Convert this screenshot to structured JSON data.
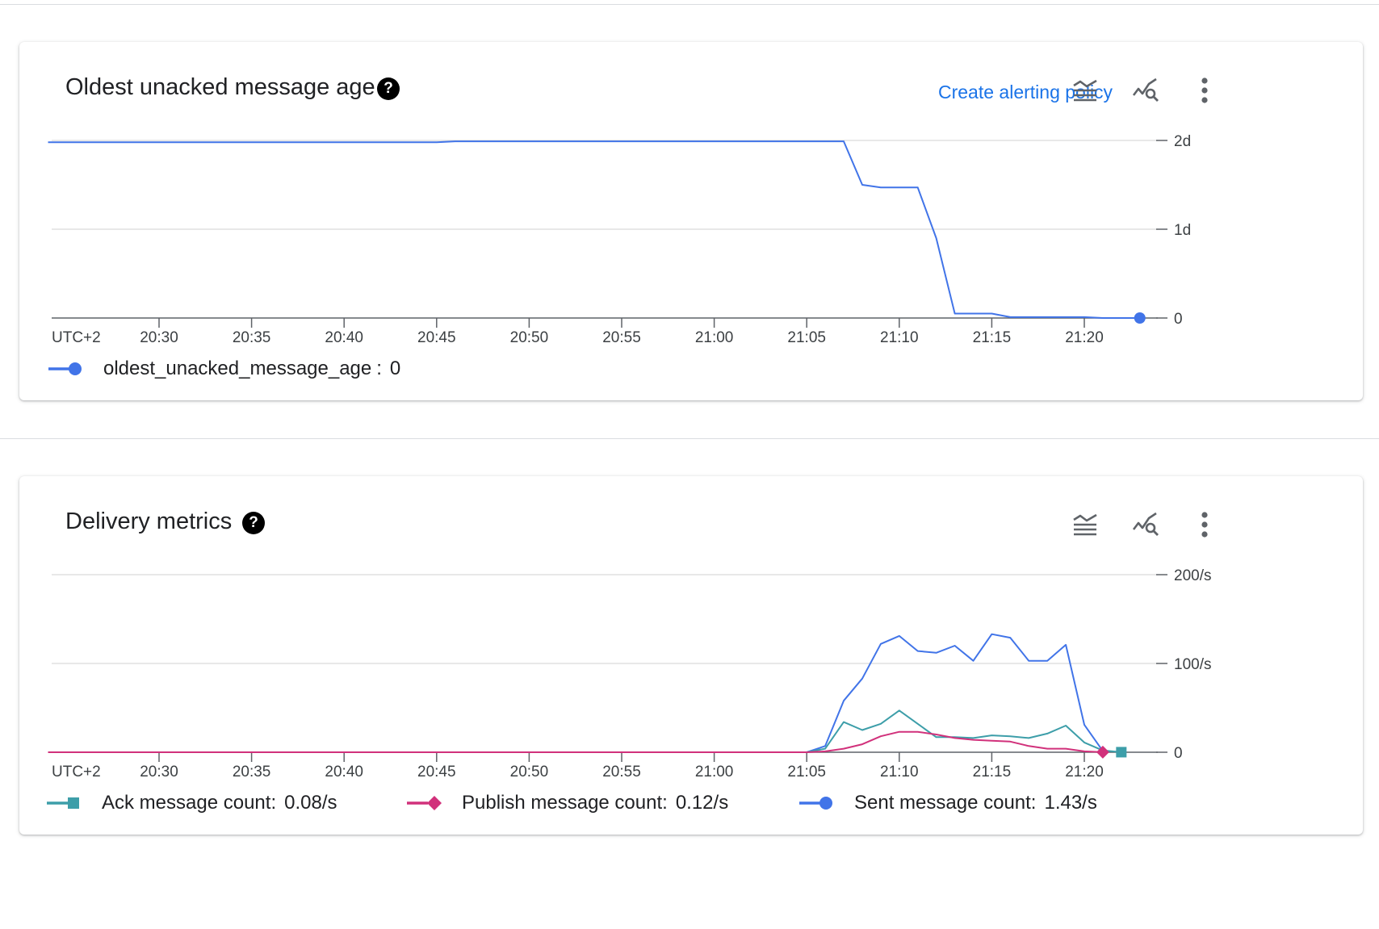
{
  "charts": [
    {
      "title": "Oldest unacked message age",
      "help_icon": "?",
      "create_alert_label": "Create alerting policy",
      "toolbar_icons": [
        "chart-legend-icon",
        "explore-metrics-icon",
        "more-vert-icon"
      ],
      "timezone_label": "UTC+2",
      "legend": [
        {
          "name": "oldest_unacked_message_age",
          "separator": ":",
          "value": "0",
          "color": "#4174e8",
          "marker": "circle"
        }
      ]
    },
    {
      "title": "Delivery metrics",
      "help_icon": "?",
      "toolbar_icons": [
        "chart-legend-icon",
        "explore-metrics-icon",
        "more-vert-icon"
      ],
      "timezone_label": "UTC+2",
      "legend": [
        {
          "name": "Ack message count:",
          "value": "0.08/s",
          "color": "#3d9ea9",
          "marker": "square"
        },
        {
          "name": "Publish message count:",
          "value": "0.12/s",
          "color": "#d1317b",
          "marker": "diamond"
        },
        {
          "name": "Sent message count:",
          "value": "1.43/s",
          "color": "#4174e8",
          "marker": "circle"
        }
      ]
    }
  ],
  "chart_data": [
    {
      "type": "line",
      "title": "Oldest unacked message age",
      "x_ticks": [
        "20:30",
        "20:35",
        "20:40",
        "20:45",
        "20:50",
        "20:55",
        "21:00",
        "21:05",
        "21:10",
        "21:15",
        "21:20"
      ],
      "y_ticks": [
        "0",
        "1d",
        "2d"
      ],
      "y_tick_values": [
        0,
        1,
        2
      ],
      "ylim": [
        0,
        2
      ],
      "y_unit": "days",
      "grid": true,
      "legend_position": "bottom-left",
      "series": [
        {
          "name": "oldest_unacked_message_age",
          "color": "#4174e8",
          "points": [
            [
              "20:24",
              1.98
            ],
            [
              "20:45",
              1.98
            ],
            [
              "20:46",
              1.99
            ],
            [
              "21:07",
              1.99
            ],
            [
              "21:08",
              1.5
            ],
            [
              "21:09",
              1.47
            ],
            [
              "21:11",
              1.47
            ],
            [
              "21:12",
              0.9
            ],
            [
              "21:13",
              0.05
            ],
            [
              "21:15",
              0.05
            ],
            [
              "21:16",
              0.01
            ],
            [
              "21:20",
              0.01
            ],
            [
              "21:21",
              0.0
            ],
            [
              "21:23",
              0.0
            ]
          ]
        }
      ]
    },
    {
      "type": "line",
      "title": "Delivery metrics",
      "x_ticks": [
        "20:30",
        "20:35",
        "20:40",
        "20:45",
        "20:50",
        "20:55",
        "21:00",
        "21:05",
        "21:10",
        "21:15",
        "21:20"
      ],
      "y_ticks": [
        "0",
        "100/s",
        "200/s"
      ],
      "y_tick_values": [
        0,
        100,
        200
      ],
      "ylim": [
        0,
        200
      ],
      "y_unit": "messages/s",
      "grid": true,
      "legend_position": "bottom",
      "series": [
        {
          "name": "Sent message count",
          "color": "#4174e8",
          "points": [
            [
              "20:24",
              0
            ],
            [
              "21:05",
              0
            ],
            [
              "21:06",
              7
            ],
            [
              "21:07",
              58
            ],
            [
              "21:08",
              83
            ],
            [
              "21:09",
              122
            ],
            [
              "21:10",
              131
            ],
            [
              "21:11",
              114
            ],
            [
              "21:12",
              112
            ],
            [
              "21:13",
              120
            ],
            [
              "21:14",
              103
            ],
            [
              "21:15",
              133
            ],
            [
              "21:16",
              129
            ],
            [
              "21:17",
              103
            ],
            [
              "21:18",
              103
            ],
            [
              "21:19",
              121
            ],
            [
              "21:20",
              31
            ],
            [
              "21:21",
              1.43
            ]
          ]
        },
        {
          "name": "Ack message count",
          "color": "#3d9ea9",
          "points": [
            [
              "20:24",
              0
            ],
            [
              "21:05",
              0
            ],
            [
              "21:06",
              4
            ],
            [
              "21:07",
              34
            ],
            [
              "21:08",
              25
            ],
            [
              "21:09",
              32
            ],
            [
              "21:10",
              47
            ],
            [
              "21:11",
              32
            ],
            [
              "21:12",
              17
            ],
            [
              "21:13",
              17
            ],
            [
              "21:14",
              16
            ],
            [
              "21:15",
              19
            ],
            [
              "21:16",
              18
            ],
            [
              "21:17",
              16
            ],
            [
              "21:18",
              21
            ],
            [
              "21:19",
              30
            ],
            [
              "21:20",
              11
            ],
            [
              "21:21",
              2
            ],
            [
              "21:22",
              0.08
            ]
          ]
        },
        {
          "name": "Publish message count",
          "color": "#d1317b",
          "points": [
            [
              "20:24",
              0
            ],
            [
              "21:05",
              0
            ],
            [
              "21:06",
              1
            ],
            [
              "21:07",
              4
            ],
            [
              "21:08",
              9
            ],
            [
              "21:09",
              18
            ],
            [
              "21:10",
              23
            ],
            [
              "21:11",
              23
            ],
            [
              "21:12",
              20
            ],
            [
              "21:13",
              16
            ],
            [
              "21:14",
              14
            ],
            [
              "21:15",
              13
            ],
            [
              "21:16",
              12
            ],
            [
              "21:17",
              7
            ],
            [
              "21:18",
              4
            ],
            [
              "21:19",
              4
            ],
            [
              "21:20",
              1
            ],
            [
              "21:21",
              0.12
            ]
          ]
        }
      ]
    }
  ]
}
